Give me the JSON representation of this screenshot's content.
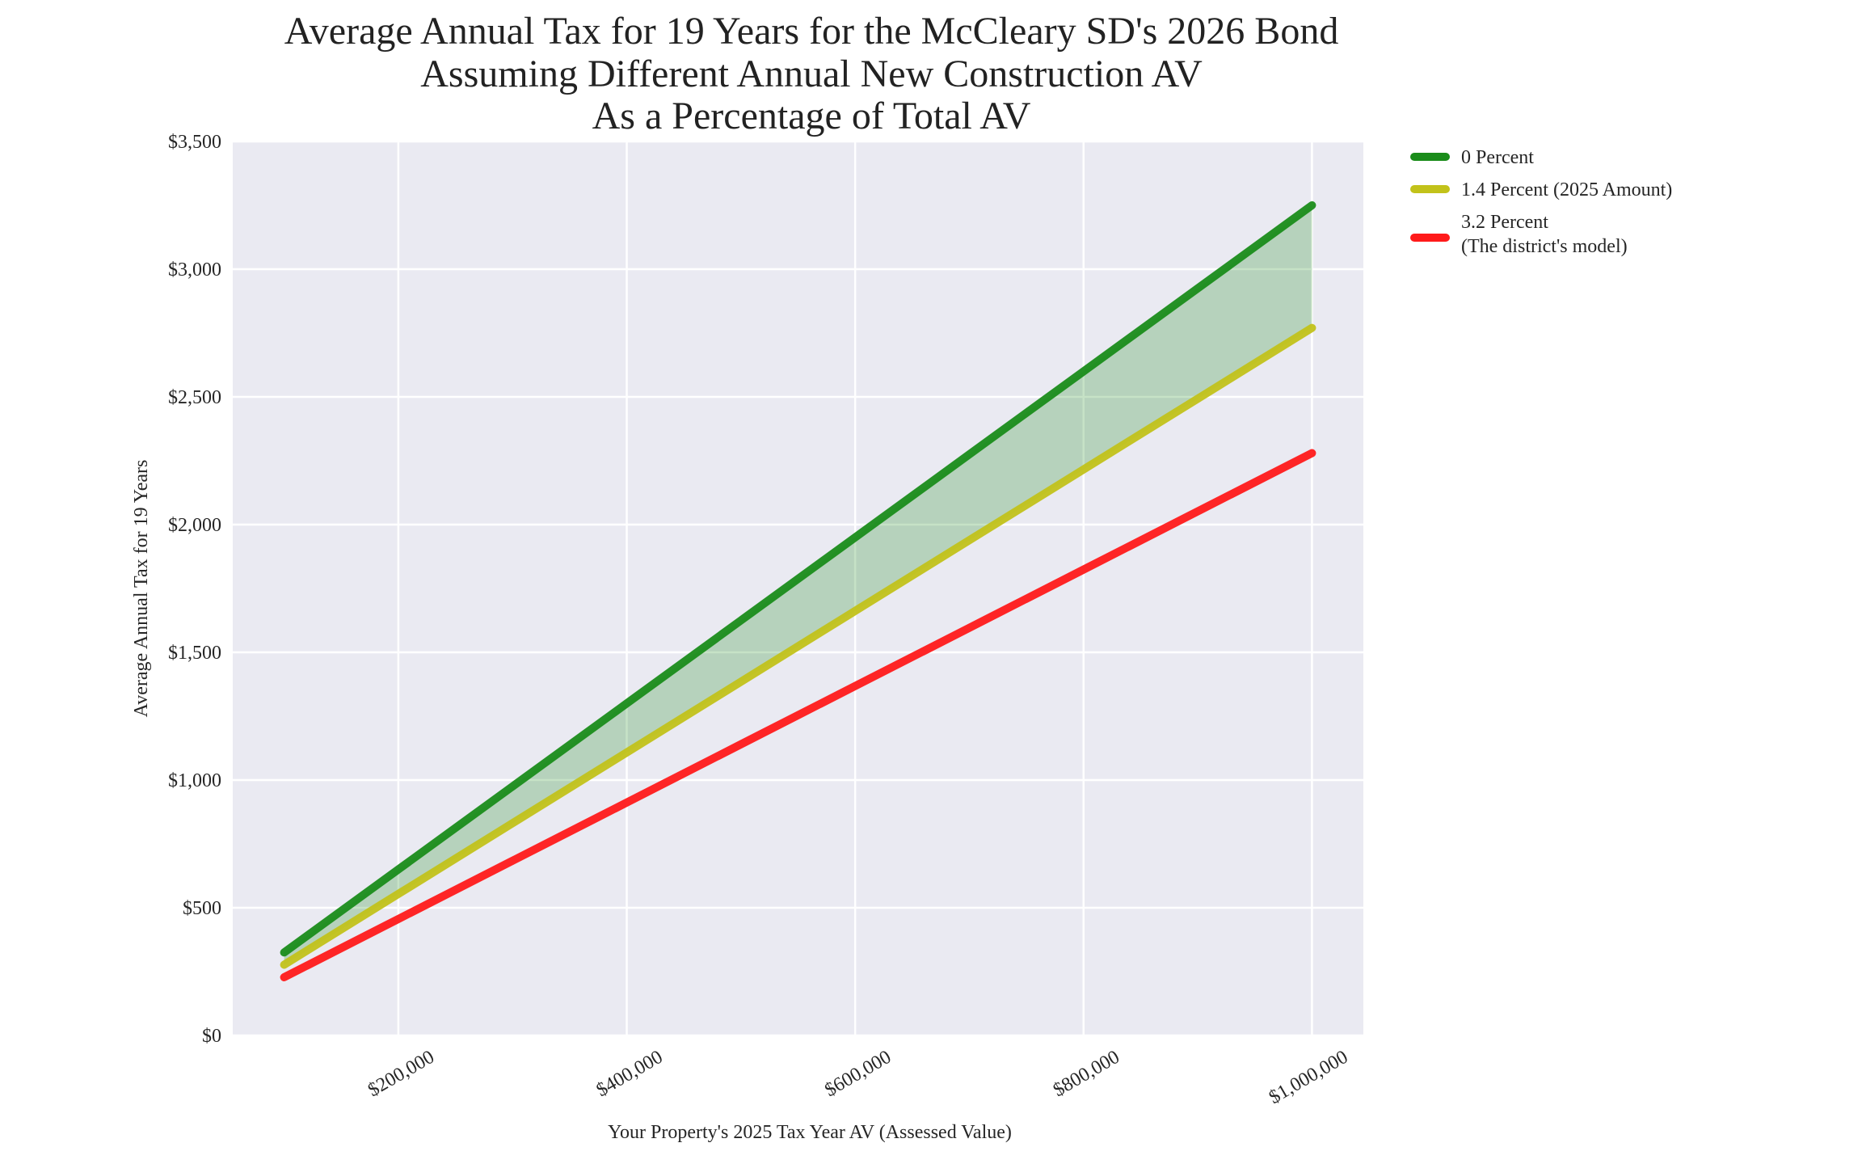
{
  "chart_data": {
    "type": "line",
    "title": [
      "Average Annual Tax for 19 Years for the McCleary SD's 2026 Bond",
      "Assuming Different Annual New Construction AV",
      "As a Percentage of Total AV"
    ],
    "xlabel": "Your Property's 2025 Tax Year AV (Assessed Value)",
    "ylabel": "Average Annual Tax for 19 Years",
    "xlim": [
      55000,
      1045000
    ],
    "ylim": [
      0,
      3500
    ],
    "grid": true,
    "legend_position": "outside-right-top",
    "background": "#eaeaf2",
    "xticks": [
      200000,
      400000,
      600000,
      800000,
      1000000
    ],
    "xtick_labels": [
      "$200,000",
      "$400,000",
      "$600,000",
      "$800,000",
      "$1,000,000"
    ],
    "yticks": [
      0,
      500,
      1000,
      1500,
      2000,
      2500,
      3000,
      3500
    ],
    "ytick_labels": [
      "$0",
      "$500",
      "$1,000",
      "$1,500",
      "$2,000",
      "$2,500",
      "$3,000",
      "$3,500"
    ],
    "x": [
      100000,
      200000,
      300000,
      400000,
      500000,
      600000,
      700000,
      800000,
      900000,
      1000000
    ],
    "series": [
      {
        "name": "0 Percent",
        "color": "#1a8c1a",
        "values": [
          325,
          650,
          975,
          1300,
          1625,
          1950,
          2275,
          2600,
          2925,
          3250
        ]
      },
      {
        "name": "1.4 Percent (2025 Amount)",
        "color": "#c2c21a",
        "values": [
          277,
          554,
          831,
          1108,
          1385,
          1662,
          1939,
          2216,
          2493,
          2770
        ]
      },
      {
        "name": "3.2 Percent\n(The district's model)",
        "name_lines": [
          "3.2 Percent",
          "(The district's model)"
        ],
        "color": "#ff1a1a",
        "values": [
          228,
          456,
          684,
          912,
          1140,
          1368,
          1596,
          1824,
          2052,
          2280
        ]
      }
    ],
    "fill_between": {
      "series": [
        "0 Percent",
        "1.4 Percent (2025 Amount)"
      ],
      "color": "#1a8c1a",
      "alpha": 0.25
    }
  }
}
